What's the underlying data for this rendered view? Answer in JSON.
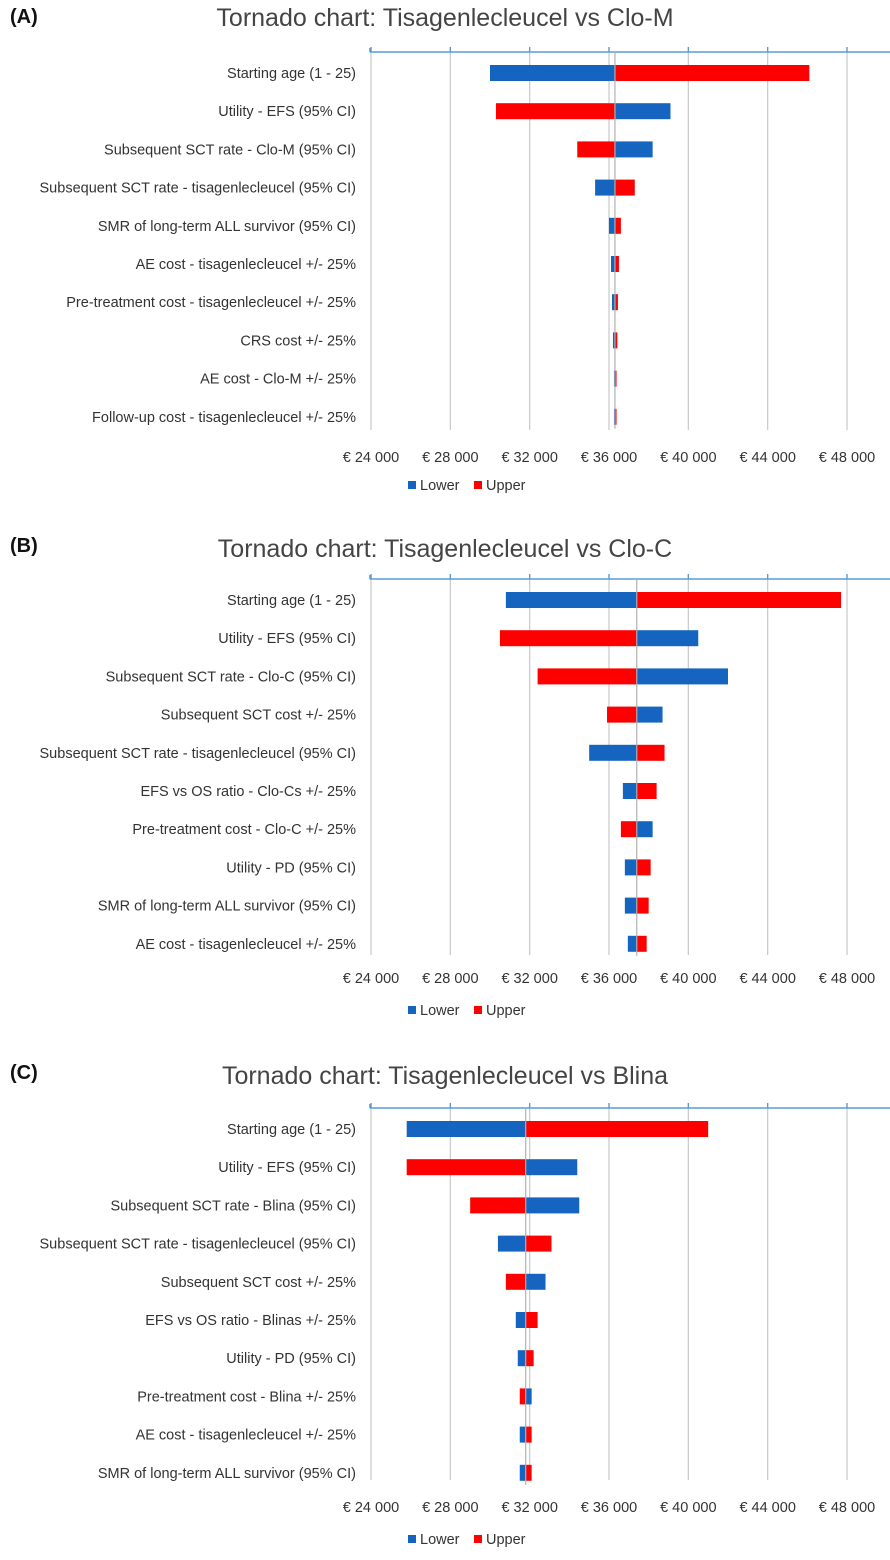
{
  "chart_data": [
    {
      "type": "bar",
      "panel": "(A)",
      "title": "Tornado chart: Tisagenlecleucel vs Clo-M",
      "base": 36300,
      "xlim": [
        24000,
        48000
      ],
      "xticks": [
        24000,
        28000,
        32000,
        36000,
        40000,
        44000,
        48000
      ],
      "xtick_labels": [
        "€ 24 000",
        "€ 28 000",
        "€ 32 000",
        "€ 36 000",
        "€ 40 000",
        "€ 44 000",
        "€ 48 000"
      ],
      "legend": [
        "Lower",
        "Upper"
      ],
      "legend_position": "bottom",
      "colors": {
        "Lower": "#1565c0",
        "Upper": "#ff0000"
      },
      "categories": [
        "Starting age (1 - 25)",
        "Utility - EFS (95% CI)",
        "Subsequent SCT rate - Clo-M (95% CI)",
        "Subsequent SCT rate - tisagenlecleucel (95% CI)",
        "SMR of long-term ALL survivor (95% CI)",
        "AE cost - tisagenlecleucel +/- 25%",
        "Pre-treatment cost - tisagenlecleucel +/- 25%",
        "CRS cost +/- 25%",
        "AE cost - Clo-M +/- 25%",
        "Follow-up cost - tisagenlecleucel +/- 25%"
      ],
      "series": [
        {
          "name": "Lower",
          "values": [
            30000,
            39100,
            38200,
            35300,
            36000,
            36100,
            36150,
            36200,
            36250,
            36250
          ]
        },
        {
          "name": "Upper",
          "values": [
            46100,
            30300,
            34400,
            37300,
            36600,
            36500,
            36450,
            36420,
            36380,
            36380
          ]
        }
      ]
    },
    {
      "type": "bar",
      "panel": "(B)",
      "title": "Tornado chart: Tisagenlecleucel vs Clo-C",
      "base": 37400,
      "xlim": [
        24000,
        48000
      ],
      "xticks": [
        24000,
        28000,
        32000,
        36000,
        40000,
        44000,
        48000
      ],
      "xtick_labels": [
        "€ 24 000",
        "€ 28 000",
        "€ 32 000",
        "€ 36 000",
        "€ 40 000",
        "€ 44 000",
        "€ 48 000"
      ],
      "legend": [
        "Lower",
        "Upper"
      ],
      "legend_position": "bottom",
      "colors": {
        "Lower": "#1565c0",
        "Upper": "#ff0000"
      },
      "categories": [
        "Starting age (1 - 25)",
        "Utility - EFS (95% CI)",
        "Subsequent SCT rate - Clo-C (95% CI)",
        "Subsequent SCT cost +/- 25%",
        "Subsequent SCT rate - tisagenlecleucel (95% CI)",
        "EFS vs OS ratio - Clo-Cs +/- 25%",
        "Pre-treatment cost - Clo-C +/- 25%",
        "Utility - PD (95% CI)",
        "SMR of long-term ALL survivor (95% CI)",
        "AE cost - tisagenlecleucel +/- 25%"
      ],
      "series": [
        {
          "name": "Lower",
          "values": [
            30800,
            40500,
            42000,
            38700,
            35000,
            36700,
            38200,
            36800,
            36800,
            36950
          ]
        },
        {
          "name": "Upper",
          "values": [
            47700,
            30500,
            32400,
            35900,
            38800,
            38400,
            36600,
            38100,
            38000,
            37900
          ]
        }
      ]
    },
    {
      "type": "bar",
      "panel": "(C)",
      "title": "Tornado chart: Tisagenlecleucel vs Blina",
      "base": 31800,
      "xlim": [
        24000,
        48000
      ],
      "xticks": [
        24000,
        28000,
        32000,
        36000,
        40000,
        44000,
        48000
      ],
      "xtick_labels": [
        "€ 24 000",
        "€ 28 000",
        "€ 32 000",
        "€ 36 000",
        "€ 40 000",
        "€ 44 000",
        "€ 48 000"
      ],
      "legend": [
        "Lower",
        "Upper"
      ],
      "legend_position": "bottom",
      "colors": {
        "Lower": "#1565c0",
        "Upper": "#ff0000"
      },
      "categories": [
        "Starting age (1 - 25)",
        "Utility - EFS (95% CI)",
        "Subsequent SCT rate - Blina (95% CI)",
        "Subsequent SCT rate - tisagenlecleucel (95% CI)",
        "Subsequent SCT cost +/- 25%",
        "EFS vs OS ratio - Blinas +/- 25%",
        "Utility - PD (95% CI)",
        "Pre-treatment cost - Blina +/- 25%",
        "AE cost - tisagenlecleucel +/- 25%",
        "SMR of long-term ALL survivor (95% CI)"
      ],
      "series": [
        {
          "name": "Lower",
          "values": [
            25800,
            34400,
            34500,
            30400,
            32800,
            31300,
            31400,
            32100,
            31500,
            31500
          ]
        },
        {
          "name": "Upper",
          "values": [
            41000,
            25800,
            29000,
            33100,
            30800,
            32400,
            32200,
            31500,
            32100,
            32100
          ]
        }
      ]
    }
  ]
}
